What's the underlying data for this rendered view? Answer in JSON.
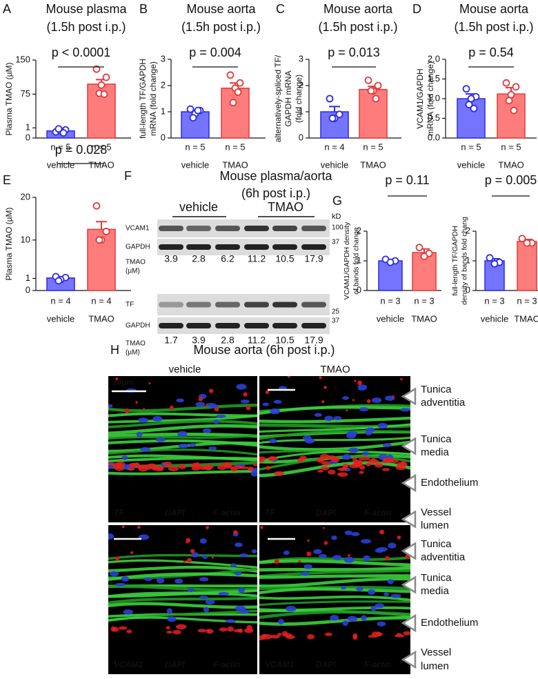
{
  "chart_data": [
    {
      "type": "bar",
      "panel": "A",
      "title": "Mouse plasma",
      "subtitle": "(1.5h post i.p.)",
      "ylabel": [
        "Plasma TMAO (µM)"
      ],
      "categories": [
        "vehicle",
        "TMAO"
      ],
      "n_labels": [
        "n = 5",
        "n = 5"
      ],
      "values": [
        0.7,
        97
      ],
      "errors": [
        0.08,
        10
      ],
      "points": [
        [
          0.6,
          0.8,
          0.7,
          0.9,
          0.5
        ],
        [
          130,
          112,
          95,
          77,
          75
        ]
      ],
      "colors": [
        "#7474ff",
        "#ff7c7c"
      ],
      "edge_colors": [
        "#2a2ae6",
        "#e23a3a"
      ],
      "annotation": "p < 0.0001",
      "ylim": [
        0,
        150
      ],
      "yticks": [
        0,
        1,
        75,
        150
      ],
      "ybreak": 1
    },
    {
      "type": "bar",
      "panel": "B",
      "title": "Mouse aorta",
      "subtitle": "(1.5h post i.p.)",
      "ylabel": [
        "full-length TF/GAPDH",
        "mRNA (fold change)"
      ],
      "categories": [
        "vehicle",
        "TMAO"
      ],
      "n_labels": [
        "n = 5",
        "n = 5"
      ],
      "values": [
        1.0,
        1.9
      ],
      "errors": [
        0.06,
        0.2
      ],
      "points": [
        [
          1.1,
          1.05,
          0.93,
          0.77,
          1.05
        ],
        [
          2.4,
          2.1,
          1.9,
          1.35,
          1.75
        ]
      ],
      "colors": [
        "#7474ff",
        "#ff7c7c"
      ],
      "edge_colors": [
        "#2a2ae6",
        "#e23a3a"
      ],
      "annotation": "p = 0.004",
      "ylim": [
        0,
        3
      ],
      "yticks": [
        0,
        1,
        2,
        3
      ]
    },
    {
      "type": "bar",
      "panel": "C",
      "title": "Mouse aorta",
      "subtitle": "(1.5h post i.p.)",
      "ylabel": [
        "alternatively-spliced TF/",
        "GAPDH mRNA",
        "(fold change)"
      ],
      "categories": [
        "vehicle",
        "TMAO"
      ],
      "n_labels": [
        "n = 4",
        "n = 5"
      ],
      "values": [
        1.0,
        1.85
      ],
      "errors": [
        0.2,
        0.12
      ],
      "points": [
        [
          1.5,
          0.9,
          0.75,
          0.75
        ],
        [
          2.2,
          2.0,
          1.8,
          1.8,
          1.5
        ]
      ],
      "colors": [
        "#7474ff",
        "#ff7c7c"
      ],
      "edge_colors": [
        "#2a2ae6",
        "#e23a3a"
      ],
      "annotation": "p = 0.013",
      "ylim": [
        0,
        3
      ],
      "yticks": [
        0,
        1,
        2,
        3
      ]
    },
    {
      "type": "bar",
      "panel": "D",
      "title": "Mouse aorta",
      "subtitle": "(1.5h post i.p.)",
      "ylabel": [
        "VCAM1/GAPDH",
        "mRNA (fold change)"
      ],
      "categories": [
        "vehicle",
        "TMAO"
      ],
      "n_labels": [
        "n = 5",
        "n = 5"
      ],
      "values": [
        1.0,
        1.12
      ],
      "errors": [
        0.12,
        0.16
      ],
      "points": [
        [
          1.25,
          1.05,
          1.0,
          0.85,
          0.75
        ],
        [
          1.4,
          1.3,
          1.1,
          0.95,
          0.7
        ]
      ],
      "colors": [
        "#7474ff",
        "#ff7c7c"
      ],
      "edge_colors": [
        "#2a2ae6",
        "#e23a3a"
      ],
      "annotation": "p = 0.54",
      "ylim": [
        0,
        2
      ],
      "yticks": [
        {
          "value": 0,
          "label": "0.0"
        },
        {
          "value": 0.5,
          "label": "0.5"
        },
        {
          "value": 1,
          "label": "1.0"
        },
        {
          "value": 1.5,
          "label": "1.5"
        },
        {
          "value": 2,
          "label": "2.0"
        }
      ]
    },
    {
      "type": "bar",
      "panel": "E",
      "ylabel": [
        "Plasma TMAO (µM)"
      ],
      "categories": [
        "vehicle",
        "TMAO"
      ],
      "n_labels": [
        "n = 4",
        "n = 4"
      ],
      "values": [
        1.1,
        12.5
      ],
      "errors": [
        0.2,
        1.8
      ],
      "points": [
        [
          1.4,
          1.2,
          0.9,
          0.8
        ],
        [
          18,
          12,
          10,
          10
        ]
      ],
      "colors": [
        "#7474ff",
        "#ff7c7c"
      ],
      "edge_colors": [
        "#2a2ae6",
        "#e23a3a"
      ],
      "annotation": "p = 0.028",
      "ylim": [
        0,
        20
      ],
      "yticks": [
        0,
        1,
        10,
        20
      ],
      "ybreak": 1
    },
    {
      "type": "bar",
      "panel": "G",
      "ylabel": [
        "VCAM1/GAPDH density",
        "of bands fold change"
      ],
      "categories": [
        "vehicle",
        "TMAO"
      ],
      "n_labels": [
        "n = 3",
        "n = 3"
      ],
      "values": [
        1.0,
        1.28
      ],
      "errors": [
        0.03,
        0.12
      ],
      "points": [
        [
          1.05,
          1.0,
          0.95
        ],
        [
          1.45,
          1.25,
          1.15
        ]
      ],
      "colors": [
        "#7474ff",
        "#ff7c7c"
      ],
      "edge_colors": [
        "#2a2ae6",
        "#e23a3a"
      ],
      "annotation": "p = 0.11",
      "ylim": [
        0,
        2
      ],
      "yticks": [
        0,
        1,
        2
      ]
    },
    {
      "type": "bar",
      "ylabel": [
        "full-length TF/GAPDH",
        "density of bands fold chang"
      ],
      "categories": [
        "vehicle",
        "TMAO"
      ],
      "n_labels": [
        "n = 3",
        "n = 3"
      ],
      "values": [
        1.0,
        1.65
      ],
      "errors": [
        0.07,
        0.07
      ],
      "points": [
        [
          1.1,
          0.95,
          0.9
        ],
        [
          1.75,
          1.6,
          1.6
        ]
      ],
      "colors": [
        "#7474ff",
        "#ff7c7c"
      ],
      "edge_colors": [
        "#2a2ae6",
        "#e23a3a"
      ],
      "annotation": "p = 0.005",
      "ylim": [
        0,
        2
      ],
      "yticks": [
        0,
        1,
        2
      ]
    }
  ],
  "blot": {
    "panel": "F",
    "title": "Mouse plasma/aorta",
    "subtitle": "(6h post i.p.)",
    "groups": [
      "vehicle",
      "TMAO"
    ],
    "unit": "kD",
    "rows": [
      {
        "label": "VCAM1",
        "marker": "100"
      },
      {
        "label": "GAPDH",
        "marker": "37"
      },
      {
        "label": "TF",
        "marker": "25"
      },
      {
        "label": "GAPDH",
        "marker": "37"
      }
    ],
    "conc_label": [
      "TMAO",
      "(µM)"
    ],
    "conc_1": [
      3.9,
      2.8,
      6.2,
      11.2,
      10.5,
      17.9
    ],
    "conc_2": [
      1.7,
      3.9,
      2.8,
      11.2,
      10.5,
      17.9
    ]
  },
  "images": {
    "panel": "H",
    "title": "Mouse aorta (6h post i.p.)",
    "columns": [
      "vehicle",
      "TMAO"
    ],
    "scale_bar": "20µm",
    "stains_top": [
      "TF",
      "DAPI",
      "F-actin"
    ],
    "stains_bottom": [
      "VCAM1",
      "DAPI",
      "F-actin"
    ],
    "layers_top": [
      [
        "Tunica",
        "adventitia"
      ],
      [
        "Tunica",
        "media"
      ],
      [
        "Endothelium"
      ],
      [
        "Vessel",
        "lumen"
      ]
    ],
    "layers_bottom": [
      [
        "Tunica",
        "adventitia"
      ],
      [
        "Tunica",
        "media"
      ],
      [
        "Endothelium"
      ],
      [
        "Vessel",
        "lumen"
      ]
    ]
  }
}
